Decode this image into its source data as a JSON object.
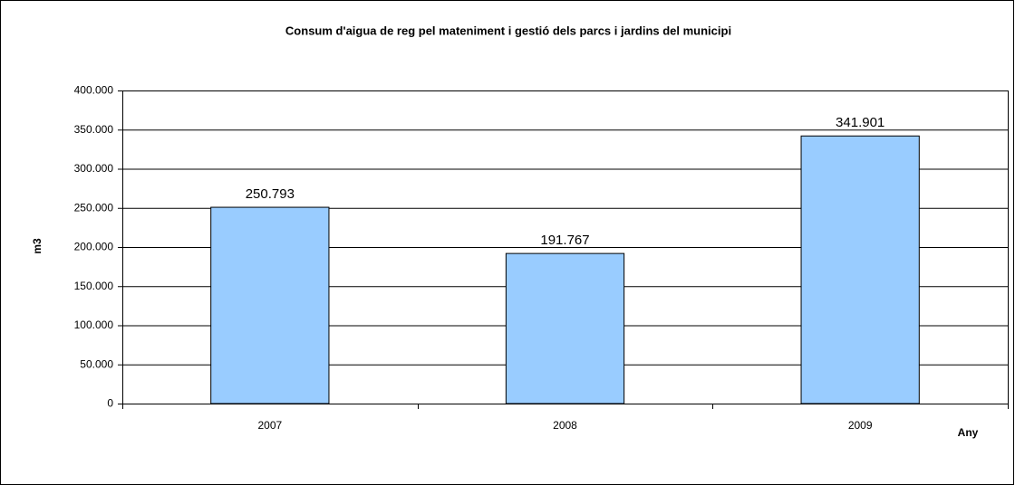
{
  "chart_data": {
    "type": "bar",
    "title": "Consum d'aigua de reg pel mateniment i gestió dels parcs i jardins del municipi",
    "xlabel": "Any",
    "ylabel": "m3",
    "categories": [
      "2007",
      "2008",
      "2009"
    ],
    "values": [
      250793,
      191767,
      341901
    ],
    "value_labels": [
      "250.793",
      "191.767",
      "341.901"
    ],
    "color": "#99ccff",
    "ylim": [
      0,
      400000
    ],
    "yticks": [
      0,
      {
        "value": 50000,
        "label": "50.000"
      },
      {
        "value": 100000,
        "label": "100.000"
      },
      {
        "value": 150000,
        "label": "150.000"
      },
      {
        "value": 200000,
        "label": "200.000"
      },
      {
        "value": 250000,
        "label": "250.000"
      },
      {
        "value": 300000,
        "label": "300.000"
      },
      {
        "value": 350000,
        "label": "350.000"
      },
      {
        "value": 400000,
        "label": "400.000"
      }
    ],
    "grid": true
  }
}
